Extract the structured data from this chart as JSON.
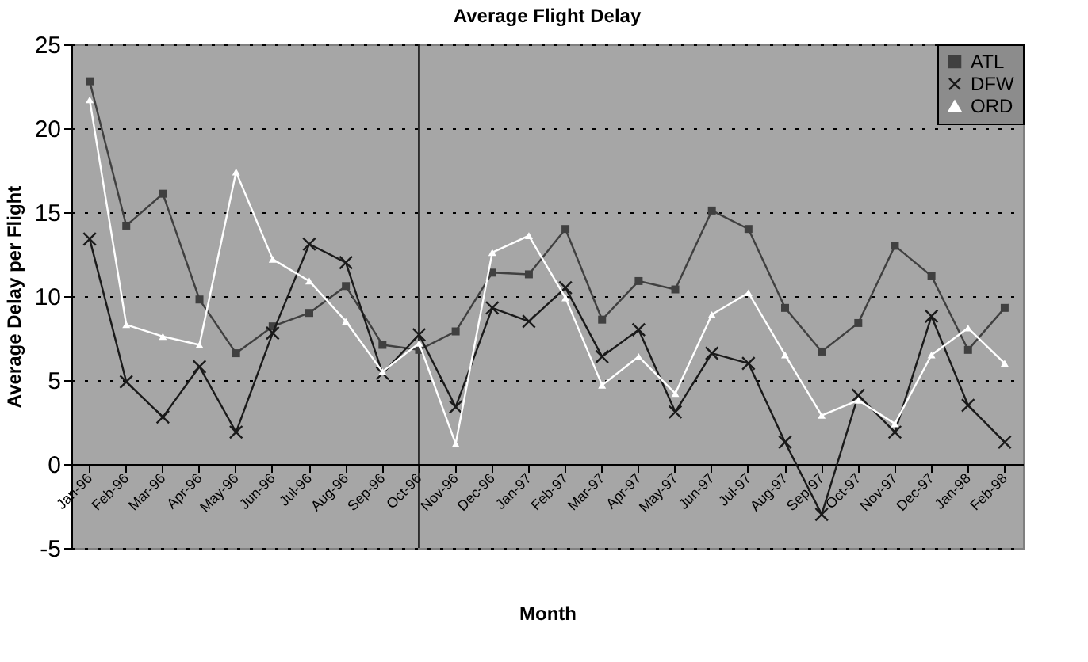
{
  "chart_data": {
    "type": "line",
    "title": "Average Flight Delay",
    "xlabel": "Month",
    "ylabel": "Average Delay per Flight",
    "categories": [
      "Jan-96",
      "Feb-96",
      "Mar-96",
      "Apr-96",
      "May-96",
      "Jun-96",
      "Jul-96",
      "Aug-96",
      "Sep-96",
      "Oct-96",
      "Nov-96",
      "Dec-96",
      "Jan-97",
      "Feb-97",
      "Mar-97",
      "Apr-97",
      "May-97",
      "Jun-97",
      "Jul-97",
      "Aug-97",
      "Sep-97",
      "Oct-97",
      "Nov-97",
      "Dec-97",
      "Jan-98",
      "Feb-98"
    ],
    "series": [
      {
        "name": "ATL",
        "color": "#404040",
        "marker": "square",
        "values": [
          22.8,
          14.2,
          16.1,
          9.8,
          6.6,
          8.2,
          9.0,
          10.6,
          7.1,
          6.8,
          7.9,
          11.4,
          11.3,
          14.0,
          8.6,
          10.9,
          10.4,
          15.1,
          14.0,
          9.3,
          6.7,
          8.4,
          13.0,
          11.2,
          6.8,
          9.3
        ]
      },
      {
        "name": "DFW",
        "color": "#1a1a1a",
        "marker": "cross",
        "values": [
          13.4,
          4.9,
          2.8,
          5.8,
          1.9,
          7.8,
          13.1,
          12.0,
          5.4,
          7.7,
          3.4,
          9.3,
          8.5,
          10.5,
          6.4,
          8.0,
          3.1,
          6.6,
          6.0,
          1.3,
          -3.0,
          4.1,
          1.9,
          8.8,
          3.5,
          1.3
        ]
      },
      {
        "name": "ORD",
        "color": "#ffffff",
        "marker": "triangle",
        "values": [
          21.7,
          8.3,
          7.6,
          7.1,
          17.4,
          12.2,
          10.9,
          8.5,
          5.5,
          7.2,
          1.2,
          12.6,
          13.6,
          9.9,
          4.7,
          6.4,
          4.2,
          8.9,
          10.2,
          6.5,
          2.9,
          3.8,
          2.4,
          6.5,
          8.1,
          6.0
        ]
      }
    ],
    "ylim": [
      -5,
      25
    ],
    "yticks": [
      -5,
      0,
      5,
      10,
      15,
      20,
      25
    ],
    "grid": "y",
    "legend": "top right",
    "line_style": "solid",
    "ref_lines": [
      {
        "axis": "x",
        "value": "Oct-96",
        "color": "#000000"
      }
    ]
  }
}
